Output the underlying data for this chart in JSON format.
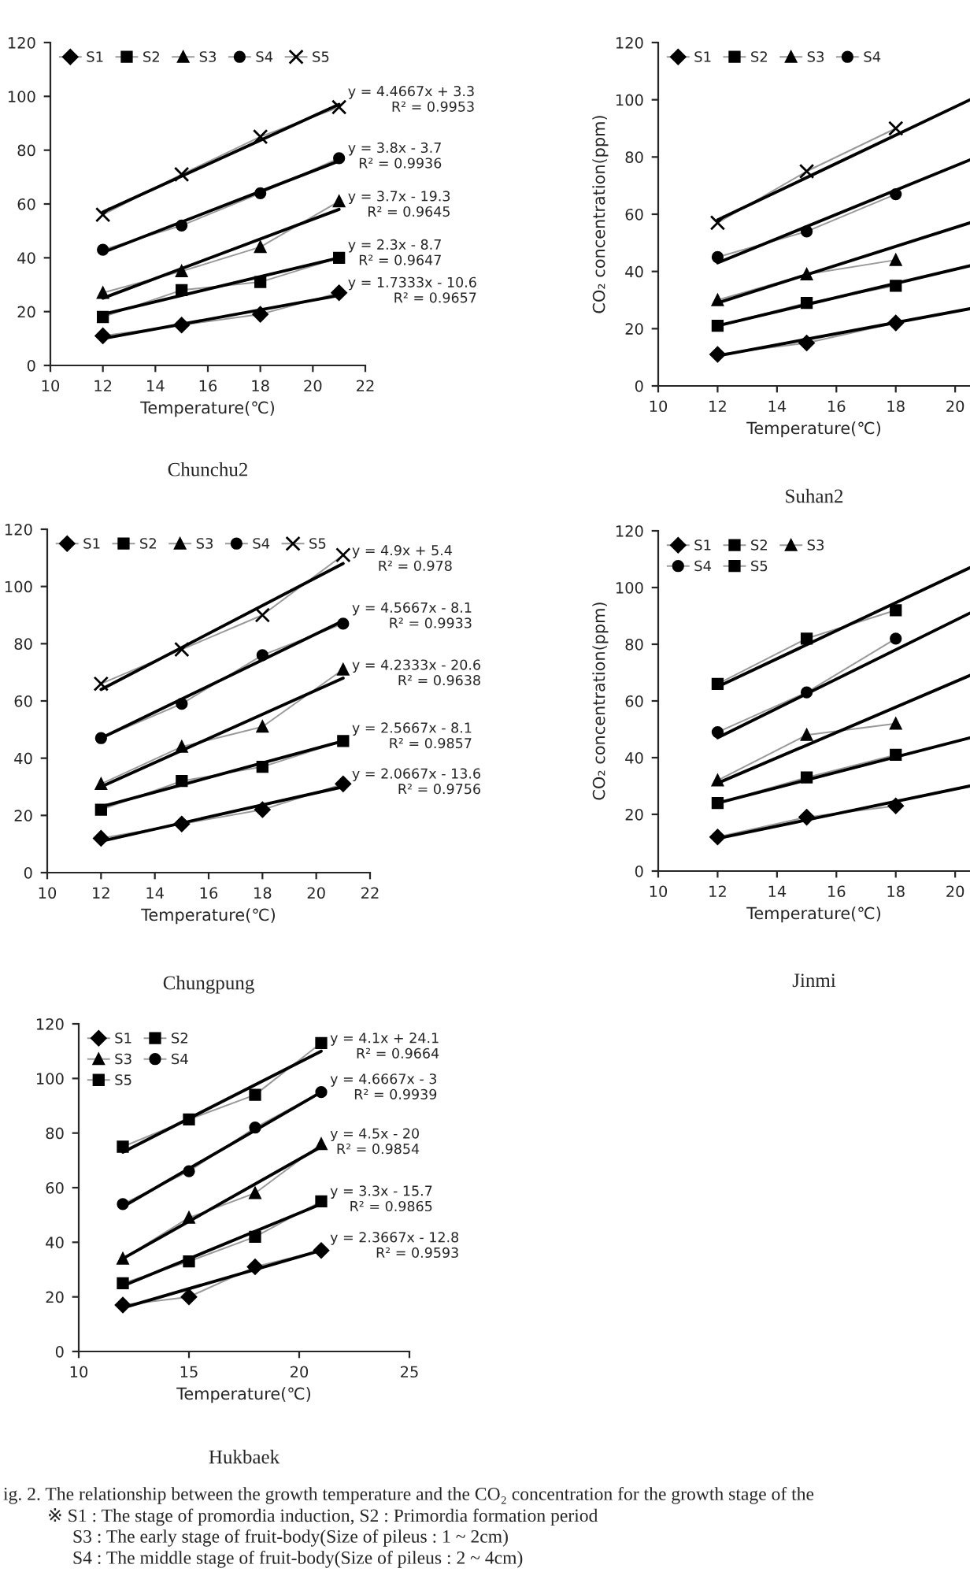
{
  "chart_data": [
    {
      "type": "line",
      "title": "Chunchu2",
      "xlabel": "Temperature(℃)",
      "xlim": [
        10,
        22
      ],
      "xticks": [
        10,
        12,
        14,
        16,
        18,
        20,
        22
      ],
      "ylim": [
        0,
        120
      ],
      "yticks": [
        0,
        20,
        40,
        60,
        80,
        100,
        120
      ],
      "legend": "top left",
      "grid": false,
      "series": [
        {
          "name": "S1",
          "color": "#000000",
          "marker": "diamond",
          "x": [
            12,
            15,
            18,
            21
          ],
          "values": [
            11,
            15,
            19,
            27
          ]
        },
        {
          "name": "S2",
          "color": "#000000",
          "marker": "square",
          "x": [
            12,
            15,
            18,
            21
          ],
          "values": [
            18,
            28,
            31,
            40
          ]
        },
        {
          "name": "S3",
          "color": "#000000",
          "marker": "triangle",
          "x": [
            12,
            15,
            18,
            21
          ],
          "values": [
            27,
            35,
            44,
            61
          ]
        },
        {
          "name": "S4",
          "color": "#000000",
          "marker": "circle",
          "x": [
            12,
            15,
            18,
            21
          ],
          "values": [
            43,
            52,
            64,
            77
          ]
        },
        {
          "name": "S5",
          "color": "#000000",
          "marker": "cross",
          "x": [
            12,
            15,
            18,
            21
          ],
          "values": [
            56,
            71,
            85,
            96
          ]
        },
        {
          "type": "line",
          "color": "#000000",
          "marker": "none",
          "x": [
            12,
            21
          ],
          "values": [
            10,
            26
          ]
        },
        {
          "type": "line",
          "color": "#000000",
          "marker": "none",
          "x": [
            12,
            21
          ],
          "values": [
            19,
            40
          ]
        },
        {
          "type": "line",
          "color": "#000000",
          "marker": "none",
          "x": [
            12,
            21
          ],
          "values": [
            25,
            58
          ]
        },
        {
          "type": "line",
          "color": "#000000",
          "marker": "none",
          "x": [
            12,
            21
          ],
          "values": [
            42,
            76
          ]
        },
        {
          "type": "line",
          "color": "#000000",
          "marker": "none",
          "x": [
            12,
            21
          ],
          "values": [
            57,
            97
          ]
        }
      ],
      "annotations": [
        "y = 4.4667x + 3.3\nR² = 0.9953",
        "y = 3.8x - 3.7\nR² = 0.9936",
        "y = 3.7x - 19.3\nR² = 0.9645",
        "y = 2.3x - 8.7\nR² = 0.9647",
        "y = 1.7333x - 10.6\nR² = 0.9657"
      ]
    },
    {
      "type": "line",
      "title": "Suhan2",
      "xlabel": "Temperature(℃)",
      "ylabel": "CO₂ concentration(ppm)",
      "xlim": [
        10,
        20.5
      ],
      "xticks": [
        10,
        12,
        14,
        16,
        18,
        20
      ],
      "ylim": [
        0,
        120
      ],
      "yticks": [
        0,
        20,
        40,
        60,
        80,
        100,
        120
      ],
      "legend": "top left",
      "grid": false,
      "series": [
        {
          "name": "S1",
          "color": "#000000",
          "marker": "diamond",
          "x": [
            12,
            15,
            18
          ],
          "values": [
            11,
            15,
            22
          ]
        },
        {
          "name": "S2",
          "color": "#000000",
          "marker": "square",
          "x": [
            12,
            15,
            18
          ],
          "values": [
            21,
            29,
            35
          ]
        },
        {
          "name": "S3",
          "color": "#000000",
          "marker": "triangle",
          "x": [
            12,
            15,
            18
          ],
          "values": [
            30,
            39,
            44
          ]
        },
        {
          "name": "S4",
          "color": "#000000",
          "marker": "circle",
          "x": [
            12,
            15,
            18
          ],
          "values": [
            45,
            54,
            67
          ]
        },
        {
          "color": "#000000",
          "marker": "cross",
          "x": [
            12,
            15,
            18
          ],
          "values": [
            57,
            75,
            90
          ]
        },
        {
          "type": "line",
          "color": "#000000",
          "marker": "none",
          "x": [
            12,
            20.5
          ],
          "values": [
            10.5,
            27
          ]
        },
        {
          "type": "line",
          "color": "#000000",
          "marker": "none",
          "x": [
            12,
            20.5
          ],
          "values": [
            21,
            42
          ]
        },
        {
          "type": "line",
          "color": "#000000",
          "marker": "none",
          "x": [
            12,
            20.5
          ],
          "values": [
            29,
            57
          ]
        },
        {
          "type": "line",
          "color": "#000000",
          "marker": "none",
          "x": [
            12,
            20.5
          ],
          "values": [
            43,
            79
          ]
        },
        {
          "type": "line",
          "color": "#000000",
          "marker": "none",
          "x": [
            12,
            20.5
          ],
          "values": [
            58,
            100
          ]
        }
      ]
    },
    {
      "type": "line",
      "title": "Chungpung",
      "xlabel": "Temperature(℃)",
      "xlim": [
        10,
        22
      ],
      "xticks": [
        10,
        12,
        14,
        16,
        18,
        20,
        22
      ],
      "ylim": [
        0,
        120
      ],
      "yticks": [
        0,
        20,
        40,
        60,
        80,
        100,
        120
      ],
      "legend": "top left",
      "grid": false,
      "series": [
        {
          "name": "S1",
          "color": "#000000",
          "marker": "diamond",
          "x": [
            12,
            15,
            18,
            21
          ],
          "values": [
            12,
            17,
            22,
            31
          ]
        },
        {
          "name": "S2",
          "color": "#000000",
          "marker": "square",
          "x": [
            12,
            15,
            18,
            21
          ],
          "values": [
            22,
            32,
            37,
            46
          ]
        },
        {
          "name": "S3",
          "color": "#000000",
          "marker": "triangle",
          "x": [
            12,
            15,
            18,
            21
          ],
          "values": [
            31,
            44,
            51,
            71
          ]
        },
        {
          "name": "S4",
          "color": "#000000",
          "marker": "circle",
          "x": [
            12,
            15,
            18,
            21
          ],
          "values": [
            47,
            59,
            76,
            87
          ]
        },
        {
          "name": "S5",
          "color": "#000000",
          "marker": "cross",
          "x": [
            12,
            15,
            18,
            21
          ],
          "values": [
            66,
            78,
            90,
            111
          ]
        },
        {
          "type": "line",
          "color": "#000000",
          "marker": "none",
          "x": [
            12,
            21
          ],
          "values": [
            11,
            30
          ]
        },
        {
          "type": "line",
          "color": "#000000",
          "marker": "none",
          "x": [
            12,
            21
          ],
          "values": [
            23,
            46
          ]
        },
        {
          "type": "line",
          "color": "#000000",
          "marker": "none",
          "x": [
            12,
            21
          ],
          "values": [
            30,
            68
          ]
        },
        {
          "type": "line",
          "color": "#000000",
          "marker": "none",
          "x": [
            12,
            21
          ],
          "values": [
            47,
            88
          ]
        },
        {
          "type": "line",
          "color": "#000000",
          "marker": "none",
          "x": [
            12,
            21
          ],
          "values": [
            64,
            108
          ]
        }
      ],
      "annotations": [
        "y = 4.9x + 5.4\nR² = 0.978",
        "y = 4.5667x - 8.1\nR² = 0.9933",
        "y = 4.2333x - 20.6\nR² = 0.9638",
        "y = 2.5667x - 8.1\nR² = 0.9857",
        "y = 2.0667x - 13.6\nR² = 0.9756"
      ]
    },
    {
      "type": "line",
      "title": "Jinmi",
      "xlabel": "Temperature(℃)",
      "ylabel": "CO₂ concentration(ppm)",
      "xlim": [
        10,
        20.5
      ],
      "xticks": [
        10,
        12,
        14,
        16,
        18,
        20
      ],
      "ylim": [
        0,
        120
      ],
      "yticks": [
        0,
        20,
        40,
        60,
        80,
        100,
        120
      ],
      "legend": "top left",
      "grid": false,
      "series": [
        {
          "name": "S1",
          "color": "#000000",
          "marker": "diamond",
          "x": [
            12,
            15,
            18
          ],
          "values": [
            12,
            19,
            23
          ]
        },
        {
          "name": "S2",
          "color": "#000000",
          "marker": "square",
          "x": [
            12,
            15,
            18
          ],
          "values": [
            24,
            33,
            41
          ]
        },
        {
          "name": "S3",
          "color": "#000000",
          "marker": "triangle",
          "x": [
            12,
            15,
            18
          ],
          "values": [
            32,
            48,
            52
          ]
        },
        {
          "name": "S4",
          "color": "#000000",
          "marker": "circle",
          "x": [
            12,
            15,
            18
          ],
          "values": [
            49,
            63,
            82
          ]
        },
        {
          "name": "S5",
          "color": "#000000",
          "marker": "square",
          "x": [
            12,
            15,
            18
          ],
          "values": [
            66,
            82,
            92
          ]
        },
        {
          "type": "line",
          "color": "#000000",
          "marker": "none",
          "x": [
            12,
            20.5
          ],
          "values": [
            11.5,
            30
          ]
        },
        {
          "type": "line",
          "color": "#000000",
          "marker": "none",
          "x": [
            12,
            20.5
          ],
          "values": [
            24,
            47
          ]
        },
        {
          "type": "line",
          "color": "#000000",
          "marker": "none",
          "x": [
            12,
            20.5
          ],
          "values": [
            31,
            69
          ]
        },
        {
          "type": "line",
          "color": "#000000",
          "marker": "none",
          "x": [
            12,
            20.5
          ],
          "values": [
            47,
            91
          ]
        },
        {
          "type": "line",
          "color": "#000000",
          "marker": "none",
          "x": [
            12,
            20.5
          ],
          "values": [
            65,
            107
          ]
        }
      ]
    },
    {
      "type": "line",
      "title": "Hukbaek",
      "xlabel": "Temperature(℃)",
      "xlim": [
        10,
        25
      ],
      "xticks": [
        10,
        15,
        20,
        25
      ],
      "ylim": [
        0,
        120
      ],
      "yticks": [
        0,
        20,
        40,
        60,
        80,
        100,
        120
      ],
      "legend": "top left",
      "grid": false,
      "series": [
        {
          "name": "S1",
          "color": "#000000",
          "marker": "diamond",
          "x": [
            12,
            15,
            18,
            21
          ],
          "values": [
            17,
            20,
            31,
            37
          ]
        },
        {
          "name": "S2",
          "color": "#000000",
          "marker": "square",
          "x": [
            12,
            15,
            18,
            21
          ],
          "values": [
            25,
            33,
            42,
            55
          ]
        },
        {
          "name": "S3",
          "color": "#000000",
          "marker": "triangle",
          "x": [
            12,
            15,
            18,
            21
          ],
          "values": [
            34,
            49,
            58,
            76
          ]
        },
        {
          "name": "S4",
          "color": "#000000",
          "marker": "circle",
          "x": [
            12,
            15,
            18,
            21
          ],
          "values": [
            54,
            66,
            82,
            95
          ]
        },
        {
          "name": "S5",
          "color": "#000000",
          "marker": "square",
          "x": [
            12,
            15,
            18,
            21
          ],
          "values": [
            75,
            85,
            94,
            113
          ]
        },
        {
          "type": "line",
          "color": "#000000",
          "marker": "none",
          "x": [
            12,
            21
          ],
          "values": [
            16,
            37
          ]
        },
        {
          "type": "line",
          "color": "#000000",
          "marker": "none",
          "x": [
            12,
            21
          ],
          "values": [
            24,
            54
          ]
        },
        {
          "type": "line",
          "color": "#000000",
          "marker": "none",
          "x": [
            12,
            21
          ],
          "values": [
            34,
            75
          ]
        },
        {
          "type": "line",
          "color": "#000000",
          "marker": "none",
          "x": [
            12,
            21
          ],
          "values": [
            53,
            95
          ]
        },
        {
          "type": "line",
          "color": "#000000",
          "marker": "none",
          "x": [
            12,
            21
          ],
          "values": [
            73,
            110
          ]
        }
      ],
      "annotations": [
        "y = 4.1x + 24.1\nR² = 0.9664",
        "y = 4.6667x - 3\nR² = 0.9939",
        "y = 4.5x - 20\nR² = 0.9854",
        "y = 3.3x - 15.7\nR² = 0.9865",
        "y = 2.3667x - 12.8\nR² = 0.9593"
      ]
    },
    {
      "type": "other",
      "annotations": [
        "ig. 2. The relationship between the growth temperature and the CO₂ concentration for the growth stage of the",
        "※ S1 : The stage of promordia induction, S2 : Primordia formation period",
        "S3 : The early stage of fruit-body(Size of pileus : 1 ~ 2cm)",
        "S4 : The middle stage of fruit-body(Size of pileus : 2 ~ 4cm)"
      ]
    }
  ]
}
